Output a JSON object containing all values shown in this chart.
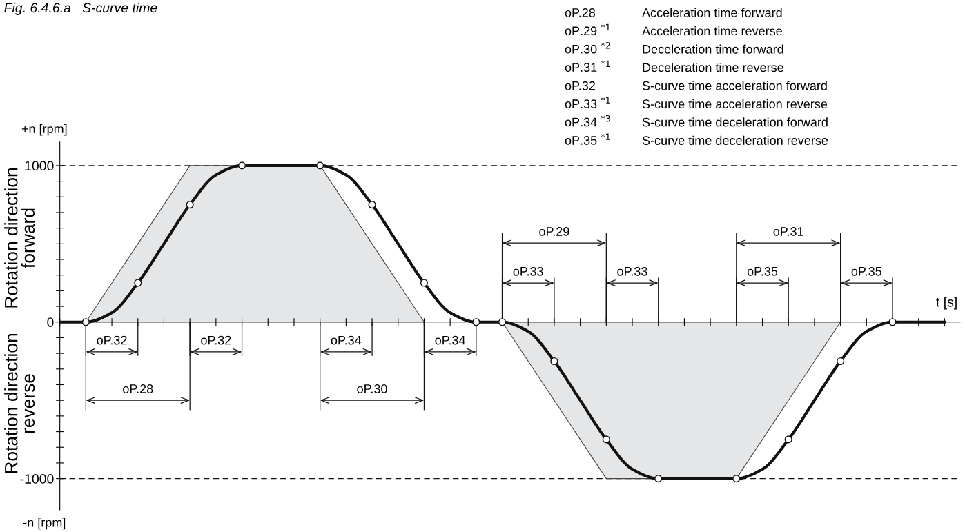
{
  "chart_data": {
    "type": "line",
    "title": "Fig. 6.4.6.a   S-curve time",
    "xlabel": "t [s]",
    "categories": [
      null,
      null,
      null,
      null,
      null,
      null,
      null,
      null,
      null,
      null,
      null,
      null,
      null,
      null,
      null,
      null,
      null,
      null,
      null,
      null,
      null,
      null,
      null,
      null,
      null,
      null,
      null,
      null,
      null,
      null,
      null,
      null,
      null,
      null,
      null
    ],
    "series": [
      {
        "type": "area",
        "color": "#e5e6e8",
        "values": [
          null,
          0,
          250,
          500,
          750,
          1000,
          1000,
          1000,
          1000,
          1000,
          1000,
          750,
          500,
          250,
          0,
          null,
          null,
          0,
          -250,
          -500,
          -750,
          -1000,
          -1000,
          -1000,
          -1000,
          -1000,
          -1000,
          -750,
          -500,
          -250,
          0,
          null,
          null,
          null,
          null
        ]
      },
      {
        "color": "#111111",
        "values": [
          0,
          0,
          60,
          250,
          500,
          750,
          940,
          1000,
          1000,
          1000,
          1000,
          940,
          750,
          500,
          250,
          60,
          0,
          0,
          -60,
          -250,
          -500,
          -750,
          -940,
          -1000,
          -1000,
          -1000,
          -1000,
          -940,
          -750,
          -500,
          -250,
          -60,
          0,
          0,
          0
        ]
      },
      {
        "type": "scatter",
        "color": "#ffffff",
        "marker": "circle",
        "values": [
          null,
          0,
          null,
          250,
          null,
          750,
          null,
          1000,
          null,
          null,
          1000,
          null,
          750,
          null,
          250,
          null,
          0,
          0,
          null,
          -250,
          null,
          -750,
          null,
          -1000,
          null,
          null,
          -1000,
          null,
          -750,
          null,
          -250,
          null,
          0,
          null,
          null
        ]
      }
    ],
    "ylim": [
      -1200,
      1150
    ],
    "yticks": [
      {
        "value": -1000,
        "label": "-1000"
      },
      {
        "value": -900,
        "label": null
      },
      {
        "value": -800,
        "label": null
      },
      {
        "value": -700,
        "label": null
      },
      {
        "value": -600,
        "label": null
      },
      {
        "value": -500,
        "label": null
      },
      {
        "value": -400,
        "label": null
      },
      {
        "value": -300,
        "label": null
      },
      {
        "value": -200,
        "label": null
      },
      {
        "value": -100,
        "label": null
      },
      0,
      {
        "value": 100,
        "label": null
      },
      {
        "value": 200,
        "label": null
      },
      {
        "value": 300,
        "label": null
      },
      {
        "value": 400,
        "label": null
      },
      {
        "value": 500,
        "label": null
      },
      {
        "value": 600,
        "label": null
      },
      {
        "value": 700,
        "label": null
      },
      {
        "value": 800,
        "label": null
      },
      {
        "value": 900,
        "label": null
      },
      1000
    ],
    "ref_lines": [
      {
        "axis": "y",
        "value": 1000,
        "line_style": "dashed",
        "color": "#111111"
      },
      {
        "axis": "y",
        "value": -1000,
        "line_style": "dashed",
        "color": "#111111"
      }
    ],
    "grid": false,
    "legend": false,
    "annotations": [
      "oP.32",
      "oP.32",
      "oP.34",
      "oP.34",
      "oP.28",
      "oP.30",
      "oP.29",
      "oP.33",
      "oP.33",
      "oP.35",
      "oP.31",
      "oP.35",
      "oP.28",
      "oP.29 $^{*1}$",
      "oP.30 $^{*2}$",
      "oP.31 $^{*1}$",
      "oP.32",
      "oP.33 $^{*1}$",
      "oP.34 $^{*3}$",
      "oP.35 $^{*1}$",
      "Acceleration time forward",
      "Acceleration time reverse",
      "Deceleration time forward",
      "Deceleration time reverse",
      "S-curve time acceleration forward",
      "S-curve time acceleration reverse",
      "S-curve time deceleration forward",
      "S-curve time deceleration reverse",
      "+n [rpm]",
      "-n [rpm]",
      "Rotation direction\nforward",
      "Rotation direction\nreverse"
    ]
  }
}
